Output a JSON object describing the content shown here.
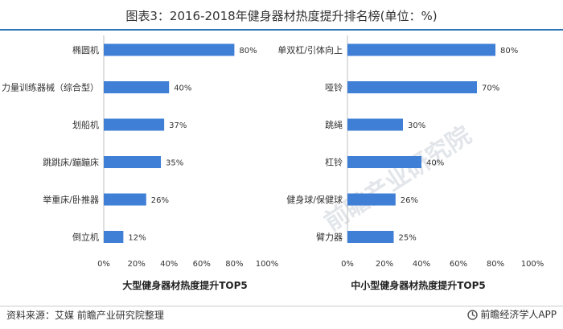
{
  "page": {
    "title": "图表3：2016-2018年健身器材热度提升排名榜(单位：%)",
    "source": "资料来源：艾媒 前瞻产业研究院整理",
    "brand": "前瞻经济学人APP",
    "watermark": "前瞻产业研究院",
    "accent_color": "#2e75b6",
    "bar_color": "#3f7fd6"
  },
  "chart_data": [
    {
      "type": "bar",
      "orientation": "horizontal",
      "title": "大型健身器材热度提升TOP5",
      "categories": [
        "椭圆机",
        "力量训练器械（综合型）",
        "划船机",
        "跳跳床/蹦蹦床",
        "举重床/卧推器",
        "倒立机"
      ],
      "values": [
        80,
        40,
        37,
        35,
        26,
        12
      ],
      "value_labels": [
        "80%",
        "40%",
        "37%",
        "35%",
        "26%",
        "12%"
      ],
      "xlim": [
        0,
        100
      ],
      "ticks": [
        "0%",
        "20%",
        "40%",
        "60%",
        "80%",
        "100%"
      ],
      "grid": false
    },
    {
      "type": "bar",
      "orientation": "horizontal",
      "title": "中小型健身器材热度提升TOP5",
      "categories": [
        "单双杠/引体向上",
        "哑铃",
        "跳绳",
        "杠铃",
        "健身球/保健球",
        "臂力器"
      ],
      "values": [
        80,
        70,
        30,
        40,
        26,
        25
      ],
      "value_labels": [
        "80%",
        "70%",
        "30%",
        "40%",
        "26%",
        "25%"
      ],
      "xlim": [
        0,
        100
      ],
      "ticks": [
        "0%",
        "20%",
        "40%",
        "60%",
        "80%",
        "100%"
      ],
      "grid": false
    }
  ]
}
